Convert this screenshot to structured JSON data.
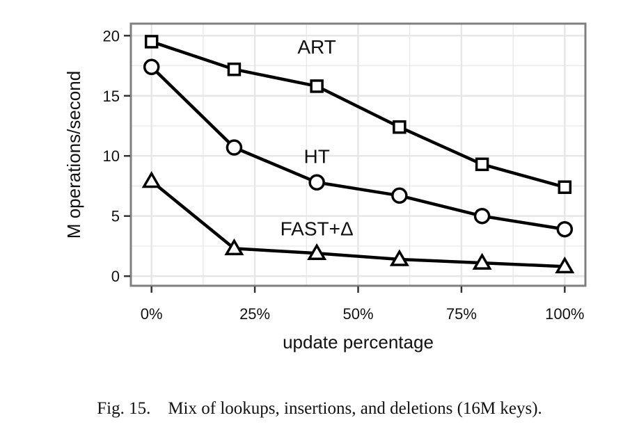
{
  "chart_data": {
    "type": "line",
    "xlabel": "update percentage",
    "ylabel": "M operations/second",
    "x": [
      0,
      20,
      40,
      60,
      80,
      100
    ],
    "xticks": [
      0,
      25,
      50,
      75,
      100
    ],
    "xtick_labels": [
      "0%",
      "25%",
      "50%",
      "75%",
      "100%"
    ],
    "xlim": [
      -5,
      105
    ],
    "yticks": [
      0,
      5,
      10,
      15,
      20
    ],
    "ytick_labels": [
      "0",
      "5",
      "10",
      "15",
      "20"
    ],
    "ylim": [
      -0.8,
      21
    ],
    "grid": true,
    "series": [
      {
        "name": "ART",
        "marker": "square",
        "values": [
          19.5,
          17.2,
          15.8,
          12.4,
          9.3,
          7.4
        ],
        "label_pos": [
          40,
          18.5
        ]
      },
      {
        "name": "HT",
        "marker": "circle",
        "values": [
          17.4,
          10.7,
          7.8,
          6.7,
          5.0,
          3.9
        ],
        "label_pos": [
          40,
          9.4
        ]
      },
      {
        "name": "FAST+Δ",
        "marker": "triangle",
        "values": [
          7.9,
          2.3,
          1.9,
          1.4,
          1.1,
          0.8
        ],
        "label_pos": [
          40,
          3.4
        ]
      }
    ],
    "colors": {
      "line": "#000000",
      "grid": "#e6e6e6",
      "frame": "#7f7f7f",
      "panel": "#ffffff"
    }
  },
  "caption": {
    "label": "Fig. 15.",
    "text": "Mix of lookups, insertions, and deletions (16M keys)."
  }
}
